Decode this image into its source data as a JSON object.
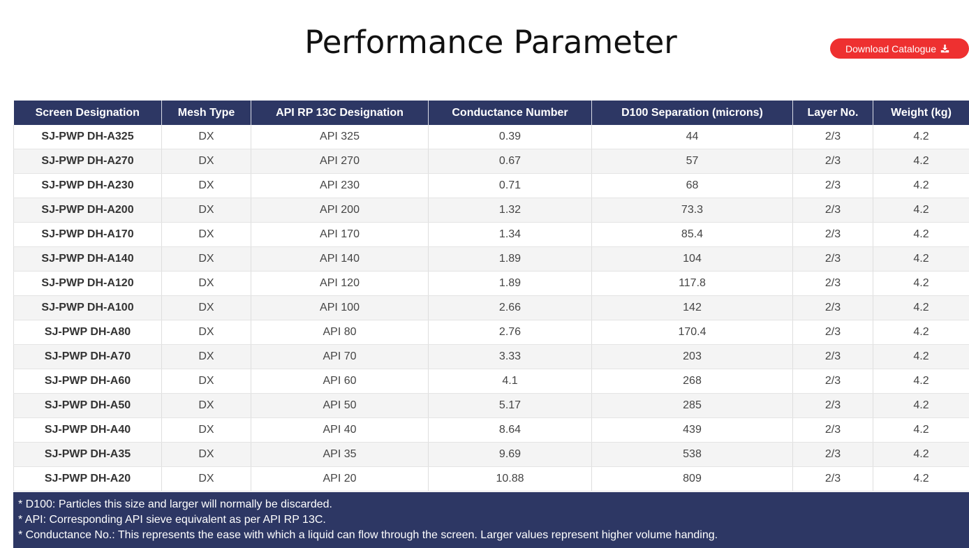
{
  "page_title": "Performance Parameter",
  "download_button": {
    "label": "Download Catalogue",
    "icon": "download-icon"
  },
  "table": {
    "headers": [
      "Screen Designation",
      "Mesh Type",
      "API RP 13C Designation",
      "Conductance Number",
      "D100 Separation (microns)",
      "Layer No.",
      "Weight (kg)"
    ],
    "rows": [
      [
        "SJ-PWP DH-A325",
        "DX",
        "API 325",
        "0.39",
        "44",
        "2/3",
        "4.2"
      ],
      [
        "SJ-PWP DH-A270",
        "DX",
        "API 270",
        "0.67",
        "57",
        "2/3",
        "4.2"
      ],
      [
        "SJ-PWP DH-A230",
        "DX",
        "API 230",
        "0.71",
        "68",
        "2/3",
        "4.2"
      ],
      [
        "SJ-PWP DH-A200",
        "DX",
        "API 200",
        "1.32",
        "73.3",
        "2/3",
        "4.2"
      ],
      [
        "SJ-PWP DH-A170",
        "DX",
        "API 170",
        "1.34",
        "85.4",
        "2/3",
        "4.2"
      ],
      [
        "SJ-PWP DH-A140",
        "DX",
        "API 140",
        "1.89",
        "104",
        "2/3",
        "4.2"
      ],
      [
        "SJ-PWP DH-A120",
        "DX",
        "API 120",
        "1.89",
        "117.8",
        "2/3",
        "4.2"
      ],
      [
        "SJ-PWP DH-A100",
        "DX",
        "API 100",
        "2.66",
        "142",
        "2/3",
        "4.2"
      ],
      [
        "SJ-PWP DH-A80",
        "DX",
        "API 80",
        "2.76",
        "170.4",
        "2/3",
        "4.2"
      ],
      [
        "SJ-PWP DH-A70",
        "DX",
        "API 70",
        "3.33",
        "203",
        "2/3",
        "4.2"
      ],
      [
        "SJ-PWP DH-A60",
        "DX",
        "API 60",
        "4.1",
        "268",
        "2/3",
        "4.2"
      ],
      [
        "SJ-PWP DH-A50",
        "DX",
        "API 50",
        "5.17",
        "285",
        "2/3",
        "4.2"
      ],
      [
        "SJ-PWP DH-A40",
        "DX",
        "API 40",
        "8.64",
        "439",
        "2/3",
        "4.2"
      ],
      [
        "SJ-PWP DH-A35",
        "DX",
        "API 35",
        "9.69",
        "538",
        "2/3",
        "4.2"
      ],
      [
        "SJ-PWP DH-A20",
        "DX",
        "API 20",
        "10.88",
        "809",
        "2/3",
        "4.2"
      ]
    ]
  },
  "notes": [
    "* D100: Particles this size and larger will normally be discarded.",
    "* API: Corresponding API sieve equivalent as per API RP 13C.",
    "* Conductance No.: This represents the ease with which a liquid can flow through the screen. Larger values represent higher volume handing."
  ],
  "colors": {
    "header_bg": "#2d3764",
    "button_bg": "#ee3030",
    "stripe_bg": "#f4f4f4"
  }
}
